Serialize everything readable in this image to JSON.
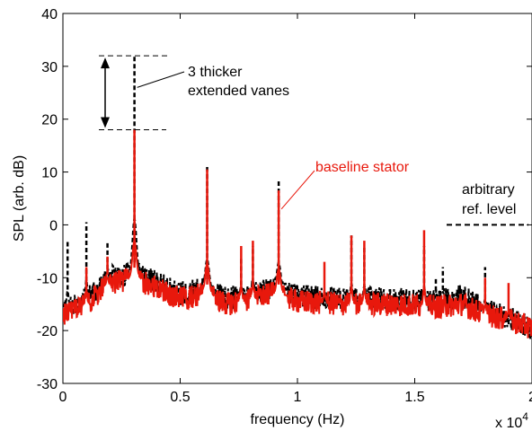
{
  "chart_data": {
    "type": "line",
    "xlabel": "frequency (Hz)",
    "ylabel": "SPL  (arb. dB)",
    "x_multiplier_label": "x 10",
    "x_multiplier_exp": "4",
    "xlim": [
      0,
      2
    ],
    "ylim": [
      -30,
      40
    ],
    "xticks": [
      0,
      0.5,
      1,
      1.5,
      2
    ],
    "xtick_labels": [
      "0",
      "0.5",
      "1",
      "1.5",
      "2"
    ],
    "yticks": [
      -30,
      -20,
      -10,
      0,
      10,
      20,
      30,
      40
    ],
    "ytick_labels": [
      "-30",
      "-20",
      "-10",
      "0",
      "10",
      "20",
      "30",
      "40"
    ],
    "grid": false,
    "colors": {
      "red": "#e8180c",
      "black": "#000000"
    },
    "series": [
      {
        "color": "black",
        "style": "dashed",
        "baseline": [
          [
            0,
            -16
          ],
          [
            0.1,
            -14
          ],
          [
            0.2,
            -10
          ],
          [
            0.3,
            -9
          ],
          [
            0.5,
            -13
          ],
          [
            0.6,
            -12
          ],
          [
            0.7,
            -14
          ],
          [
            0.8,
            -13
          ],
          [
            0.9,
            -12
          ],
          [
            1.0,
            -13.5
          ],
          [
            1.2,
            -14
          ],
          [
            1.4,
            -14
          ],
          [
            1.6,
            -14.5
          ],
          [
            1.7,
            -13.5
          ],
          [
            1.8,
            -16
          ],
          [
            1.9,
            -17.5
          ],
          [
            2.0,
            -19.5
          ]
        ],
        "peaks": [
          [
            0.02,
            -3
          ],
          [
            0.1,
            0.5
          ],
          [
            0.19,
            -3
          ],
          [
            0.305,
            32
          ],
          [
            0.615,
            11
          ],
          [
            0.76,
            -6
          ],
          [
            0.81,
            -4
          ],
          [
            0.92,
            8.5
          ],
          [
            1.23,
            -2
          ],
          [
            1.285,
            -4
          ],
          [
            1.54,
            -4
          ],
          [
            1.59,
            -10
          ],
          [
            1.62,
            -8
          ],
          [
            1.8,
            -8
          ]
        ]
      },
      {
        "color": "red",
        "style": "solid",
        "baseline": [
          [
            0,
            -17
          ],
          [
            0.1,
            -15
          ],
          [
            0.2,
            -11
          ],
          [
            0.3,
            -10
          ],
          [
            0.5,
            -14
          ],
          [
            0.6,
            -13
          ],
          [
            0.7,
            -15
          ],
          [
            0.8,
            -14
          ],
          [
            0.9,
            -13
          ],
          [
            1.0,
            -14.5
          ],
          [
            1.2,
            -15
          ],
          [
            1.4,
            -15
          ],
          [
            1.6,
            -15.5
          ],
          [
            1.7,
            -15
          ],
          [
            1.8,
            -17
          ],
          [
            1.9,
            -18
          ],
          [
            2.0,
            -19.5
          ]
        ],
        "peaks": [
          [
            0.1,
            -8
          ],
          [
            0.19,
            -6
          ],
          [
            0.305,
            18
          ],
          [
            0.615,
            10.5
          ],
          [
            0.76,
            -4
          ],
          [
            0.81,
            -3
          ],
          [
            0.92,
            6.5
          ],
          [
            1.115,
            -7
          ],
          [
            1.23,
            -2
          ],
          [
            1.285,
            -3
          ],
          [
            1.54,
            -1
          ],
          [
            1.8,
            -10
          ],
          [
            1.9,
            -11
          ]
        ]
      }
    ],
    "annotations": {
      "vanes_line1": "3 thicker",
      "vanes_line2": "extended vanes",
      "baseline": "baseline stator",
      "ref_line1": "arbitrary",
      "ref_line2": "ref. level",
      "arrow_top": 32,
      "arrow_bottom": 18,
      "ref_level_y": 0
    }
  }
}
